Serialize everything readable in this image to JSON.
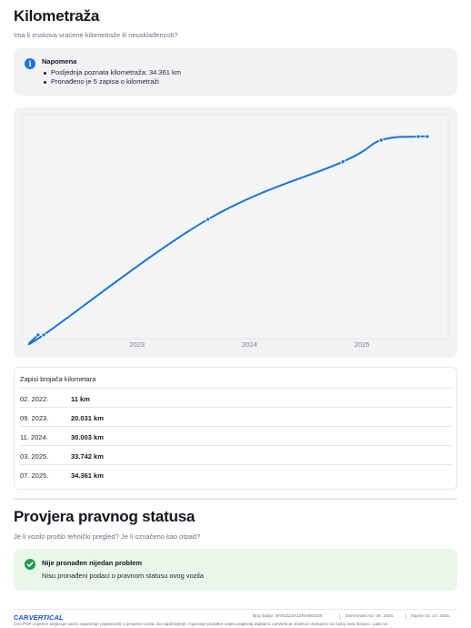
{
  "mileage": {
    "title": "Kilometraža",
    "subtitle": "Ima li znakova vraćene kilometraže ili neusklađenosti?",
    "note": {
      "title": "Napomena",
      "items": [
        "Posljednja poznata kilometraža: 34.361 km",
        "Pronađeno je 5 zapisa o kilometraži"
      ]
    },
    "table": {
      "header": "Zapisi brojača kilometara",
      "rows": [
        {
          "date": "02. 2022.",
          "value": "11 km"
        },
        {
          "date": "09. 2023.",
          "value": "20.031 km"
        },
        {
          "date": "11. 2024.",
          "value": "30.003 km"
        },
        {
          "date": "03. 2025.",
          "value": "33.742 km"
        },
        {
          "date": "07. 2025.",
          "value": "34.361 km"
        }
      ]
    }
  },
  "chart_data": {
    "type": "line",
    "title": "",
    "xlabel": "",
    "ylabel": "",
    "x_tick_labels": [
      "2023",
      "2024",
      "2025"
    ],
    "x_tick_years": [
      2023,
      2024,
      2025
    ],
    "xlim": [
      2022.0,
      2025.75
    ],
    "ylim": [
      0,
      35000
    ],
    "series": [
      {
        "x": [
          2022.12,
          2022.17,
          2023.63,
          2024.83,
          2025.17,
          2025.5,
          2025.58
        ],
        "y": [
          11,
          11,
          20031,
          30003,
          33742,
          34361,
          34361
        ],
        "color": "#1a73d9"
      }
    ],
    "grid": false,
    "legend": "none"
  },
  "legal": {
    "title": "Provjera pravnog statusa",
    "subtitle": "Je li vozilo prošlo tehnički pregled? Je li označeno kao otpad?",
    "status": {
      "title": "Nije pronađen nijedan problem",
      "text": "Nisu pronađeni podaci o pravnom statusu ovog vozila"
    }
  },
  "footer": {
    "brand_a": "CAR",
    "brand_b": "VERTICAL",
    "vin": "Broj šasije:  WVGZZZA1ZNV083336",
    "generated": "Generirano  02. 09. 2025.",
    "expires": "Istječe  02. 10. 2025.",
    "disclaimer": "Ovo PDF izvješće uključuje samo najvažnije pojedinosti o povijesti vozila. Za najdetaljnije i najnovije podatke uvijek pogledaj digitalno carVertical izvješće dostupno na našoj web stranici. Lako se"
  }
}
